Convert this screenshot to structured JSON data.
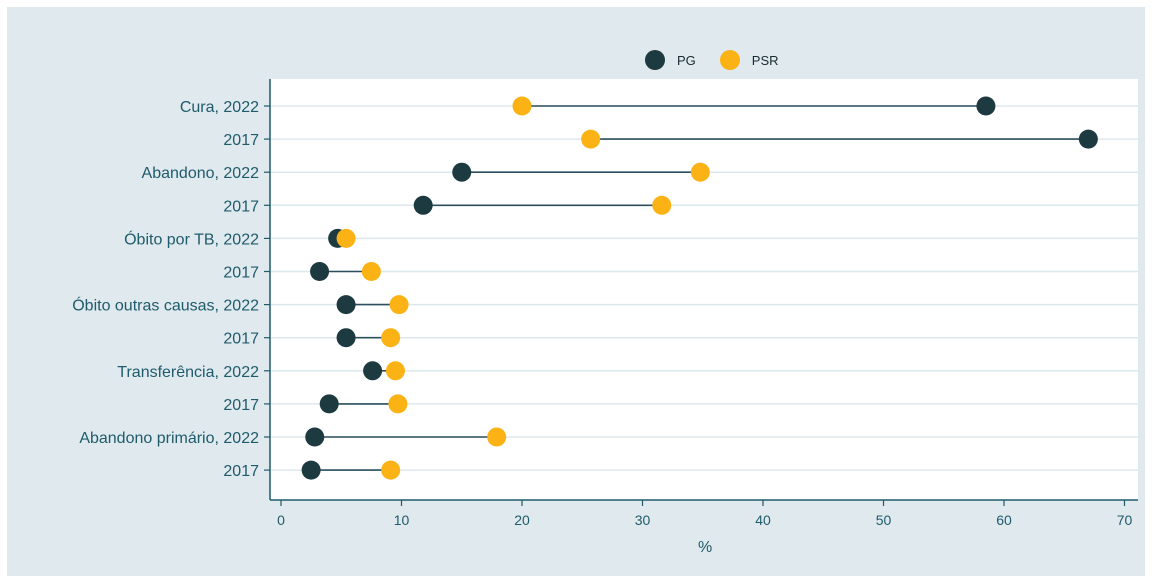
{
  "colors": {
    "background": "#dfe9ee",
    "plot_background": "#ffffff",
    "axis": "#1f5b6b",
    "grid": "#dde8ee",
    "text": "#1f5b6b",
    "connector": "#2b4f5f",
    "pg": "#1c3a40",
    "psr": "#fbb214"
  },
  "legend": [
    {
      "name": "PG",
      "color": "#1c3a40"
    },
    {
      "name": "PSR",
      "color": "#fbb214"
    }
  ],
  "chart_data": {
    "type": "dumbbell",
    "title": "",
    "xlabel": "%",
    "ylabel": "",
    "xlim": [
      -0.7,
      70.7
    ],
    "xticks": [
      0,
      10,
      20,
      30,
      40,
      50,
      60,
      70
    ],
    "categories": [
      "Cura, 2022",
      "2017",
      "Abandono, 2022",
      "2017",
      "Óbito por TB, 2022",
      "2017",
      "Óbito outras causas, 2022",
      "2017",
      "Transferência, 2022",
      "2017",
      "Abandono primário, 2022",
      "2017"
    ],
    "series": [
      {
        "name": "PG",
        "color": "#1c3a40",
        "values": [
          58.5,
          67.0,
          15.0,
          11.8,
          4.7,
          3.2,
          5.4,
          5.4,
          7.6,
          4.0,
          2.8,
          2.5
        ]
      },
      {
        "name": "PSR",
        "color": "#fbb214",
        "values": [
          20.0,
          25.7,
          34.8,
          31.6,
          5.4,
          7.5,
          9.8,
          9.1,
          9.5,
          9.7,
          17.9,
          9.1
        ]
      }
    ],
    "grid": true,
    "legend_position": "top-center"
  }
}
